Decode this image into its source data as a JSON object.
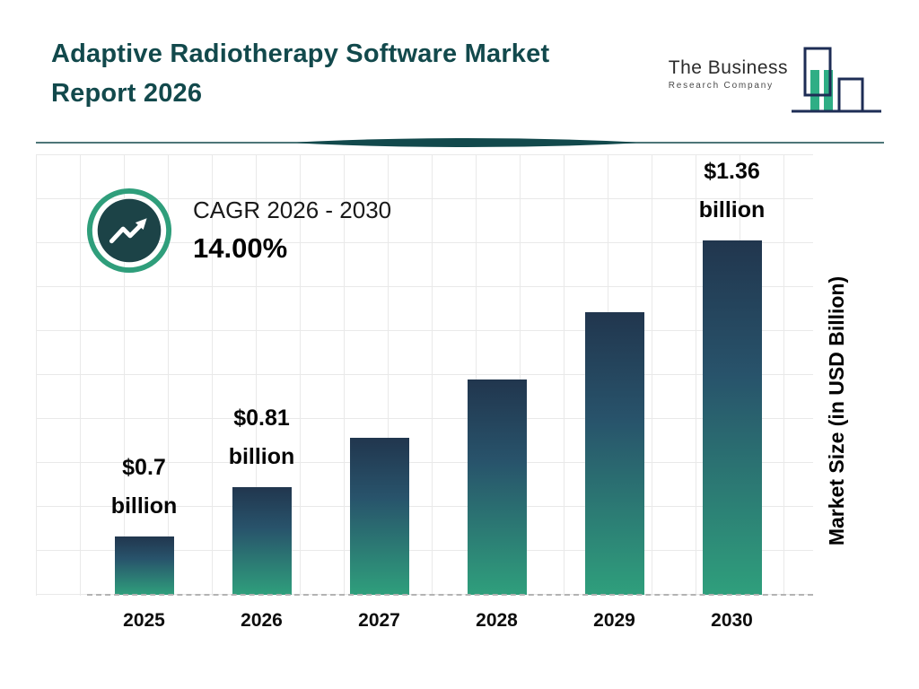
{
  "page": {
    "title_line1": "Adaptive Radiotherapy Software Market",
    "title_line2": "Report 2026"
  },
  "logo": {
    "line1": "The Business",
    "line2": "Research Company"
  },
  "cagr": {
    "label": "CAGR 2026 - 2030",
    "value": "14.00%"
  },
  "chart_data": {
    "type": "bar",
    "title": "Adaptive Radiotherapy Software Market Report 2026",
    "ylabel": "Market Size (in USD Billion)",
    "xlabel": "",
    "unit": "USD billion",
    "cagr_label": "CAGR 2026 - 2030",
    "cagr_value": "14.00%",
    "grid": true,
    "categories": [
      "2025",
      "2026",
      "2027",
      "2028",
      "2029",
      "2030"
    ],
    "values": [
      0.7,
      0.81,
      0.92,
      1.05,
      1.2,
      1.36
    ],
    "bars": [
      {
        "year": "2025",
        "value": 0.7,
        "label_value": "$0.7",
        "label_unit": "billion"
      },
      {
        "year": "2026",
        "value": 0.81,
        "label_value": "$0.81",
        "label_unit": "billion"
      },
      {
        "year": "2027",
        "value": 0.92
      },
      {
        "year": "2028",
        "value": 1.05
      },
      {
        "year": "2029",
        "value": 1.2
      },
      {
        "year": "2030",
        "value": 1.36,
        "label_value": "$1.36",
        "label_unit": "billion"
      }
    ],
    "colors": {
      "bar_top": "#21364e",
      "bar_bottom": "#2f9f7c",
      "accent_ring": "#2f9e7b",
      "badge_inner": "#1c4347",
      "title_teal": "#12494c",
      "logo_navy": "#1e2d55",
      "logo_green": "#2fae85"
    }
  }
}
